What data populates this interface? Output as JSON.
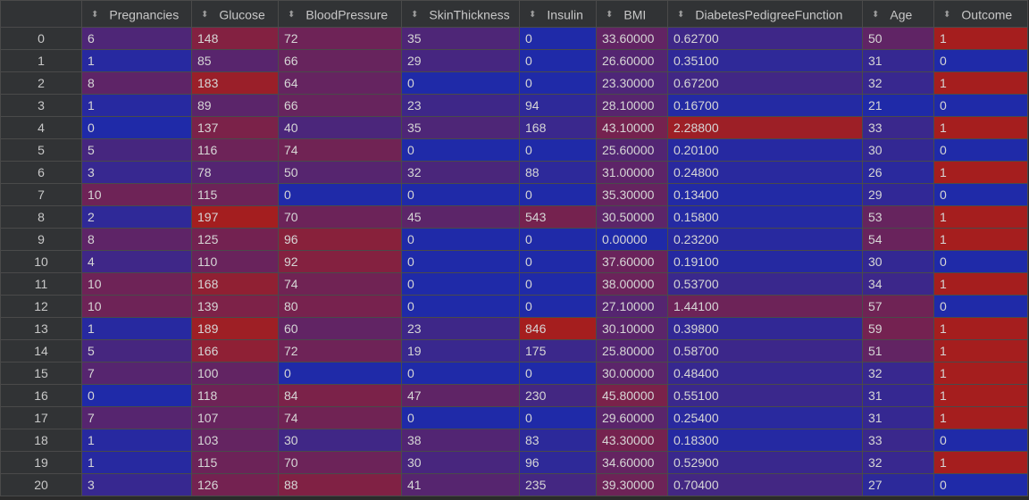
{
  "table": {
    "columns": [
      "Pregnancies",
      "Glucose",
      "BloodPressure",
      "SkinThickness",
      "Insulin",
      "BMI",
      "DiabetesPedigreeFunction",
      "Age",
      "Outcome"
    ],
    "colors": {
      "low": "#1f2aa8",
      "high": "#a51e1e"
    },
    "ranges": {
      "Pregnancies": [
        0,
        17
      ],
      "Glucose": [
        0,
        199
      ],
      "BloodPressure": [
        0,
        122
      ],
      "SkinThickness": [
        0,
        99
      ],
      "Insulin": [
        0,
        846
      ],
      "BMI": [
        0,
        67.1
      ],
      "DiabetesPedigreeFunction": [
        0.078,
        2.42
      ],
      "Age": [
        21,
        81
      ],
      "Outcome": [
        0,
        1
      ]
    },
    "rows": [
      {
        "index": "0",
        "cells": [
          "6",
          "148",
          "72",
          "35",
          "0",
          "33.60000",
          "0.62700",
          "50",
          "1"
        ]
      },
      {
        "index": "1",
        "cells": [
          "1",
          "85",
          "66",
          "29",
          "0",
          "26.60000",
          "0.35100",
          "31",
          "0"
        ]
      },
      {
        "index": "2",
        "cells": [
          "8",
          "183",
          "64",
          "0",
          "0",
          "23.30000",
          "0.67200",
          "32",
          "1"
        ]
      },
      {
        "index": "3",
        "cells": [
          "1",
          "89",
          "66",
          "23",
          "94",
          "28.10000",
          "0.16700",
          "21",
          "0"
        ]
      },
      {
        "index": "4",
        "cells": [
          "0",
          "137",
          "40",
          "35",
          "168",
          "43.10000",
          "2.28800",
          "33",
          "1"
        ]
      },
      {
        "index": "5",
        "cells": [
          "5",
          "116",
          "74",
          "0",
          "0",
          "25.60000",
          "0.20100",
          "30",
          "0"
        ]
      },
      {
        "index": "6",
        "cells": [
          "3",
          "78",
          "50",
          "32",
          "88",
          "31.00000",
          "0.24800",
          "26",
          "1"
        ]
      },
      {
        "index": "7",
        "cells": [
          "10",
          "115",
          "0",
          "0",
          "0",
          "35.30000",
          "0.13400",
          "29",
          "0"
        ]
      },
      {
        "index": "8",
        "cells": [
          "2",
          "197",
          "70",
          "45",
          "543",
          "30.50000",
          "0.15800",
          "53",
          "1"
        ]
      },
      {
        "index": "9",
        "cells": [
          "8",
          "125",
          "96",
          "0",
          "0",
          "0.00000",
          "0.23200",
          "54",
          "1"
        ]
      },
      {
        "index": "10",
        "cells": [
          "4",
          "110",
          "92",
          "0",
          "0",
          "37.60000",
          "0.19100",
          "30",
          "0"
        ]
      },
      {
        "index": "11",
        "cells": [
          "10",
          "168",
          "74",
          "0",
          "0",
          "38.00000",
          "0.53700",
          "34",
          "1"
        ]
      },
      {
        "index": "12",
        "cells": [
          "10",
          "139",
          "80",
          "0",
          "0",
          "27.10000",
          "1.44100",
          "57",
          "0"
        ]
      },
      {
        "index": "13",
        "cells": [
          "1",
          "189",
          "60",
          "23",
          "846",
          "30.10000",
          "0.39800",
          "59",
          "1"
        ]
      },
      {
        "index": "14",
        "cells": [
          "5",
          "166",
          "72",
          "19",
          "175",
          "25.80000",
          "0.58700",
          "51",
          "1"
        ]
      },
      {
        "index": "15",
        "cells": [
          "7",
          "100",
          "0",
          "0",
          "0",
          "30.00000",
          "0.48400",
          "32",
          "1"
        ]
      },
      {
        "index": "16",
        "cells": [
          "0",
          "118",
          "84",
          "47",
          "230",
          "45.80000",
          "0.55100",
          "31",
          "1"
        ]
      },
      {
        "index": "17",
        "cells": [
          "7",
          "107",
          "74",
          "0",
          "0",
          "29.60000",
          "0.25400",
          "31",
          "1"
        ]
      },
      {
        "index": "18",
        "cells": [
          "1",
          "103",
          "30",
          "38",
          "83",
          "43.30000",
          "0.18300",
          "33",
          "0"
        ]
      },
      {
        "index": "19",
        "cells": [
          "1",
          "115",
          "70",
          "30",
          "96",
          "34.60000",
          "0.52900",
          "32",
          "1"
        ]
      },
      {
        "index": "20",
        "cells": [
          "3",
          "126",
          "88",
          "41",
          "235",
          "39.30000",
          "0.70400",
          "27",
          "0"
        ]
      }
    ]
  }
}
